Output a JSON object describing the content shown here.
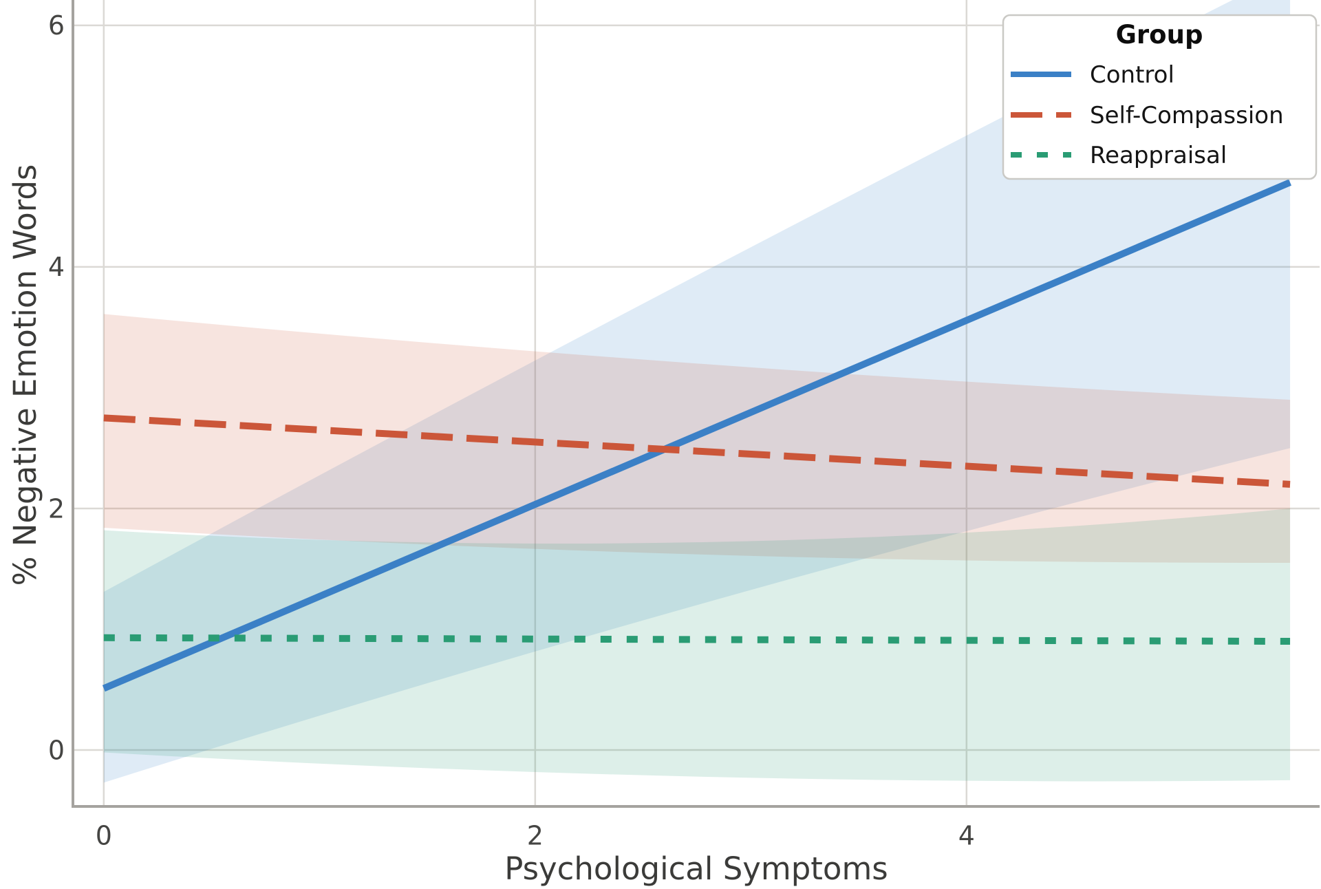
{
  "figure": {
    "background": "#ffffff",
    "grid_color": "#dbd9d5",
    "spine_color": "#a5a39f",
    "tick_text_color": "#454543",
    "axis_label_color": "#3b3b39",
    "legend_border_color": "#cac9c5",
    "legend_text_color": "#141414"
  },
  "chart_data": {
    "type": "line",
    "title": "",
    "xlabel": "Psychological Symptoms",
    "ylabel": "% Negative Emotion Words",
    "xlim": [
      -0.143,
      5.637
    ],
    "ylim": [
      -0.467,
      6.21
    ],
    "xticks": [
      0,
      2,
      4
    ],
    "yticks": [
      0,
      2,
      4,
      6
    ],
    "grid": true,
    "legend_position": "upper right",
    "legend": {
      "title": "Group"
    },
    "band_opacity": 0.16,
    "series": [
      {
        "name": "Control",
        "style": "solid",
        "color": "#3b80c6",
        "x": [
          0,
          5.5
        ],
        "y": [
          0.51,
          4.7
        ],
        "band": {
          "x": [
            0,
            2.75,
            5.5
          ],
          "top": [
            1.31,
            3.93,
            6.45
          ],
          "bottom": [
            -0.27,
            1.2,
            2.5
          ]
        }
      },
      {
        "name": "Self-Compassion",
        "style": "dashed",
        "color": "#cb5639",
        "x": [
          0,
          5.5
        ],
        "y": [
          2.75,
          2.2
        ],
        "band": {
          "x": [
            0,
            2.75,
            5.5
          ],
          "top": [
            3.61,
            3.2,
            2.9
          ],
          "bottom": [
            1.84,
            1.62,
            1.55
          ]
        }
      },
      {
        "name": "Reappraisal",
        "style": "dotted",
        "color": "#2a9c74",
        "x": [
          0,
          5.5
        ],
        "y": [
          0.93,
          0.9
        ],
        "band": {
          "x": [
            0,
            2.75,
            5.5
          ],
          "top": [
            1.82,
            1.72,
            2.0
          ],
          "bottom": [
            -0.02,
            -0.22,
            -0.25
          ]
        }
      }
    ]
  }
}
